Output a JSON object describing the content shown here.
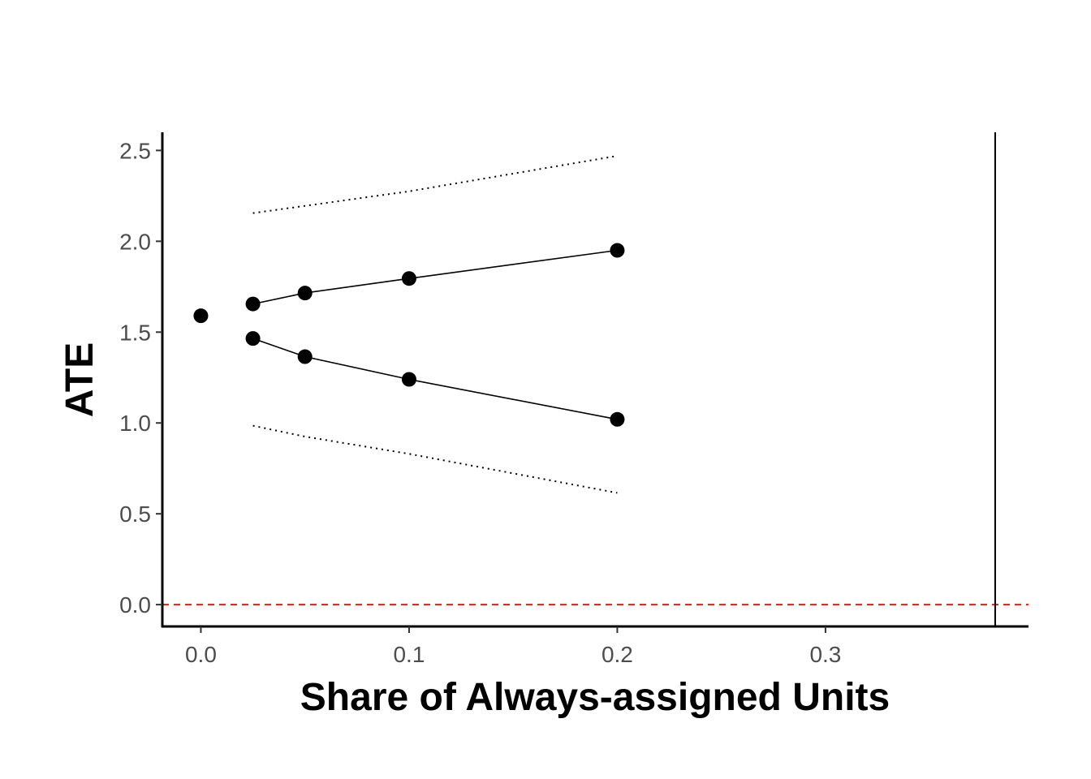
{
  "chart_data": {
    "type": "scatter",
    "title": "",
    "xlabel": "Share of Always-assigned Units",
    "ylabel": "ATE",
    "xlim": [
      -0.0185,
      0.3975
    ],
    "ylim": [
      -0.12,
      2.6
    ],
    "x_ticks": [
      0.0,
      0.1,
      0.2,
      0.3
    ],
    "x_tick_labels": [
      "0.0",
      "0.1",
      "0.2",
      "0.3"
    ],
    "y_ticks": [
      0.0,
      0.5,
      1.0,
      1.5,
      2.0,
      2.5
    ],
    "y_tick_labels": [
      "0.0",
      "0.5",
      "1.0",
      "1.5",
      "2.0",
      "2.5"
    ],
    "grid": false,
    "point_estimate": {
      "x": 0.0,
      "y": 1.59
    },
    "series": [
      {
        "style": "solid-with-points",
        "x": [
          0.025,
          0.05,
          0.1,
          0.2
        ],
        "y": [
          1.655,
          1.715,
          1.795,
          1.95
        ]
      },
      {
        "style": "solid-with-points",
        "x": [
          0.025,
          0.05,
          0.1,
          0.2
        ],
        "y": [
          1.465,
          1.365,
          1.24,
          1.02
        ]
      },
      {
        "style": "dotted",
        "x": [
          0.025,
          0.05,
          0.1,
          0.2
        ],
        "y": [
          2.155,
          2.195,
          2.275,
          2.47
        ]
      },
      {
        "style": "dotted",
        "x": [
          0.025,
          0.05,
          0.1,
          0.2
        ],
        "y": [
          0.985,
          0.925,
          0.83,
          0.615
        ]
      }
    ],
    "reference_lines": {
      "horizontal_y": 0.0,
      "horizontal_color": "#e41a1c",
      "horizontal_style": "dashed",
      "vertical_x": 0.3815,
      "vertical_color": "#000000"
    },
    "point_color": "#000000",
    "line_color": "#000000"
  }
}
